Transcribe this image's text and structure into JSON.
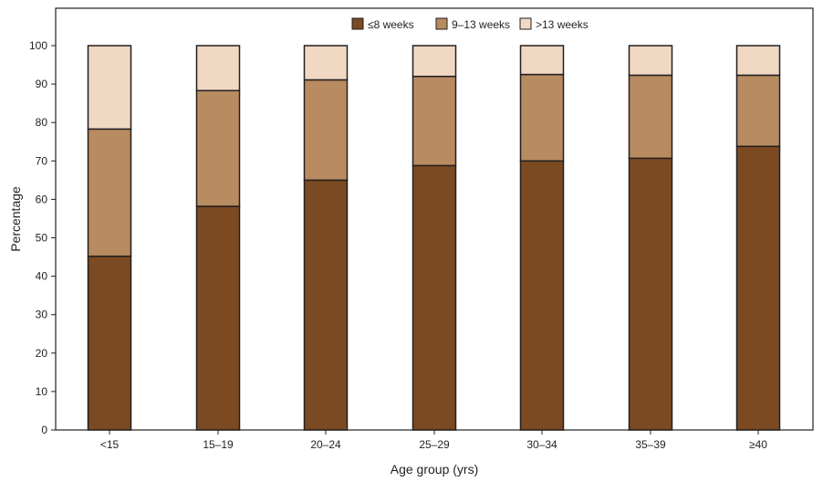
{
  "chart_data": {
    "type": "bar",
    "stacked": true,
    "title": "",
    "xlabel": "Age group (yrs)",
    "ylabel": "Percentage",
    "ylim": [
      0,
      100
    ],
    "yticks": [
      0,
      10,
      20,
      30,
      40,
      50,
      60,
      70,
      80,
      90,
      100
    ],
    "categories": [
      "<15",
      "15–19",
      "20–24",
      "25–29",
      "30–34",
      "35–39",
      "≥40"
    ],
    "series": [
      {
        "name": "≤8 weeks",
        "color": "#7b4a22",
        "values": [
          45.2,
          58.2,
          65.0,
          68.8,
          70.0,
          70.7,
          73.8
        ]
      },
      {
        "name": "9–13 weeks",
        "color": "#b88b60",
        "values": [
          33.1,
          30.1,
          26.1,
          23.2,
          22.5,
          21.6,
          18.5
        ]
      },
      {
        "name": ">13 weeks",
        "color": "#f0d8c3",
        "values": [
          21.7,
          11.7,
          8.9,
          8.0,
          7.5,
          7.7,
          7.7
        ]
      }
    ],
    "legend_position": "top-center",
    "grid": false
  }
}
